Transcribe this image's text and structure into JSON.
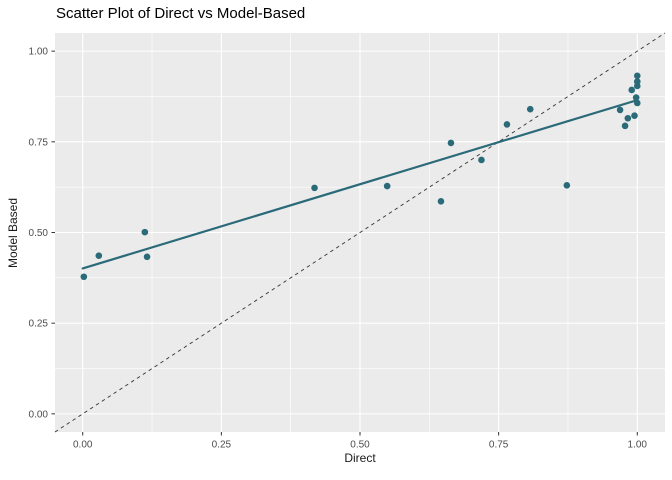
{
  "chart_data": {
    "type": "scatter",
    "title": "Scatter Plot of Direct vs Model-Based",
    "xlabel": "Direct",
    "ylabel": "Model Based",
    "xlim": [
      -0.05,
      1.05
    ],
    "ylim": [
      -0.05,
      1.05
    ],
    "x_ticks": [
      0.0,
      0.25,
      0.5,
      0.75,
      1.0
    ],
    "y_ticks": [
      0.0,
      0.25,
      0.5,
      0.75,
      1.0
    ],
    "x_minor_ticks": [
      0.125,
      0.375,
      0.625,
      0.875
    ],
    "y_minor_ticks": [
      0.125,
      0.375,
      0.625,
      0.875
    ],
    "tick_label_format_decimals": 2,
    "grid": "major-and-minor",
    "legend": false,
    "points": [
      [
        0.002,
        0.378
      ],
      [
        0.029,
        0.436
      ],
      [
        0.112,
        0.501
      ],
      [
        0.116,
        0.433
      ],
      [
        0.418,
        0.623
      ],
      [
        0.549,
        0.628
      ],
      [
        0.646,
        0.586
      ],
      [
        0.664,
        0.747
      ],
      [
        0.719,
        0.7
      ],
      [
        0.765,
        0.798
      ],
      [
        0.807,
        0.84
      ],
      [
        0.873,
        0.63
      ],
      [
        0.969,
        0.838
      ],
      [
        0.978,
        0.794
      ],
      [
        0.983,
        0.815
      ],
      [
        0.995,
        0.822
      ],
      [
        1.0,
        0.857
      ],
      [
        0.998,
        0.872
      ],
      [
        0.99,
        0.893
      ],
      [
        1.0,
        0.904
      ],
      [
        1.0,
        0.916
      ],
      [
        1.0,
        0.932
      ]
    ],
    "regression_line": {
      "x0": 0.0,
      "y0": 0.401,
      "x1": 1.0,
      "y1": 0.865,
      "style": "solid"
    },
    "identity_line": {
      "x0": -0.05,
      "y0": -0.05,
      "x1": 1.05,
      "y1": 1.05,
      "style": "dashed"
    },
    "colors": {
      "point": "#2b6a78",
      "regression_line": "#2b6a78",
      "identity_line": "#333333",
      "panel_background": "#ebebeb",
      "gridline": "#ffffff",
      "tick_mark": "#333333",
      "tick_label": "#4d4d4d",
      "axis_title": "#1a1a1a",
      "title": "#000000",
      "figure_background": "#ffffff"
    }
  }
}
